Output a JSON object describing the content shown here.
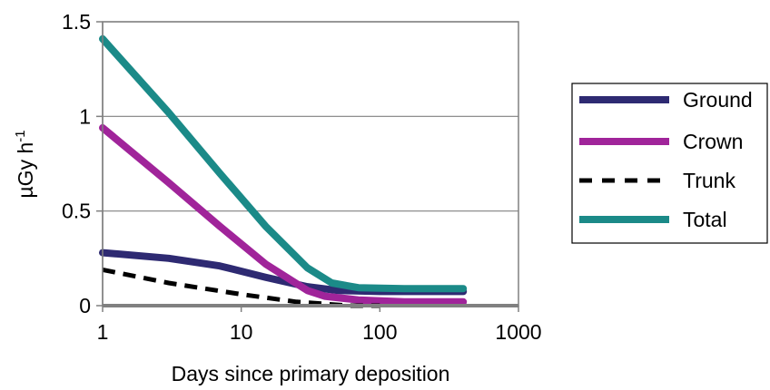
{
  "chart_data": {
    "type": "line",
    "title": "",
    "xlabel": "Days since primary deposition",
    "ylabel": "µGy h",
    "ylabel_superscript": "-1",
    "x_scale": "log",
    "xlim": [
      1,
      1000
    ],
    "ylim": [
      0,
      1.5
    ],
    "x_ticks": [
      1,
      10,
      100,
      1000
    ],
    "x_tick_labels": [
      "1",
      "10",
      "100",
      "1000"
    ],
    "y_ticks": [
      0,
      0.5,
      1,
      1.5
    ],
    "y_tick_labels": [
      "0",
      "0.5",
      "1",
      "1.5"
    ],
    "grid": "horizontal",
    "legend_position": "right",
    "series": [
      {
        "name": "Ground",
        "color": "#2e2a72",
        "dash": "solid",
        "points": [
          [
            1,
            0.28
          ],
          [
            3,
            0.25
          ],
          [
            7,
            0.21
          ],
          [
            15,
            0.15
          ],
          [
            30,
            0.1
          ],
          [
            50,
            0.08
          ],
          [
            100,
            0.075
          ],
          [
            400,
            0.075
          ]
        ]
      },
      {
        "name": "Crown",
        "color": "#a0249a",
        "dash": "solid",
        "points": [
          [
            1,
            0.94
          ],
          [
            3,
            0.65
          ],
          [
            7,
            0.42
          ],
          [
            15,
            0.22
          ],
          [
            30,
            0.08
          ],
          [
            40,
            0.05
          ],
          [
            70,
            0.03
          ],
          [
            150,
            0.02
          ],
          [
            400,
            0.02
          ]
        ]
      },
      {
        "name": "Trunk",
        "color": "#000000",
        "dash": "dashed",
        "points": [
          [
            1,
            0.19
          ],
          [
            3,
            0.12
          ],
          [
            10,
            0.06
          ],
          [
            25,
            0.02
          ],
          [
            60,
            0.0
          ],
          [
            100,
            0.0
          ]
        ]
      },
      {
        "name": "Total",
        "color": "#1b8a88",
        "dash": "solid",
        "points": [
          [
            1,
            1.41
          ],
          [
            3,
            1.02
          ],
          [
            7,
            0.7
          ],
          [
            15,
            0.42
          ],
          [
            30,
            0.2
          ],
          [
            45,
            0.12
          ],
          [
            70,
            0.095
          ],
          [
            150,
            0.09
          ],
          [
            400,
            0.09
          ]
        ]
      }
    ]
  }
}
